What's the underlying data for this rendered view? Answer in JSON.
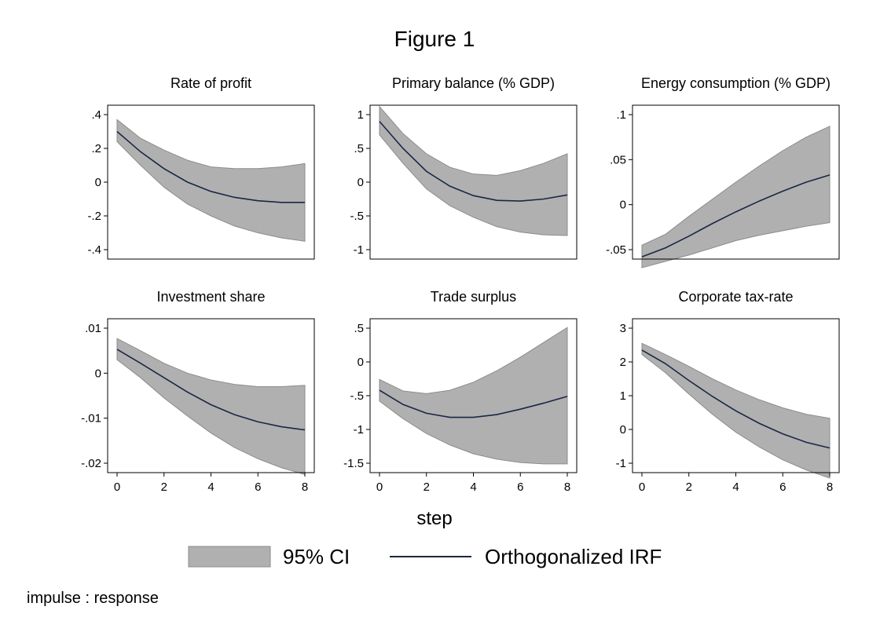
{
  "figure": {
    "title": "Figure 1",
    "xlabel": "step",
    "note": "impulse : response",
    "legend": [
      {
        "label": "95% CI",
        "kind": "band"
      },
      {
        "label": "Orthogonalized IRF",
        "kind": "line"
      }
    ],
    "colors": {
      "band": "#b0b0b0",
      "band_edge": "#8c8c8c",
      "line": "#1a2744",
      "frame": "#000000"
    }
  },
  "chart_data": [
    {
      "type": "area",
      "title": "Rate of profit",
      "x": [
        0,
        1,
        2,
        3,
        4,
        5,
        6,
        7,
        8
      ],
      "xlim": [
        0,
        8
      ],
      "xticks": [
        {
          "v": 0,
          "label": "0"
        },
        {
          "v": 2,
          "label": "2"
        },
        {
          "v": 4,
          "label": "4"
        },
        {
          "v": 6,
          "label": "6"
        },
        {
          "v": 8,
          "label": "8"
        }
      ],
      "ylim": [
        -0.4,
        0.4
      ],
      "yticks": [
        {
          "v": 0.4,
          "label": ".4"
        },
        {
          "v": 0.2,
          "label": ".2"
        },
        {
          "v": 0,
          "label": "0"
        },
        {
          "v": -0.2,
          "label": "-.2"
        },
        {
          "v": -0.4,
          "label": "-.4"
        }
      ],
      "series": [
        {
          "name": "Orthogonalized IRF",
          "values": [
            0.3,
            0.18,
            0.08,
            0.0,
            -0.055,
            -0.09,
            -0.11,
            -0.12,
            -0.12
          ]
        },
        {
          "name": "95% CI",
          "lower": [
            0.24,
            0.1,
            -0.03,
            -0.13,
            -0.2,
            -0.26,
            -0.3,
            -0.33,
            -0.35
          ],
          "upper": [
            0.37,
            0.26,
            0.19,
            0.13,
            0.09,
            0.08,
            0.08,
            0.09,
            0.11
          ]
        }
      ]
    },
    {
      "type": "area",
      "title": "Primary balance (% GDP)",
      "x": [
        0,
        1,
        2,
        3,
        4,
        5,
        6,
        7,
        8
      ],
      "xlim": [
        0,
        8
      ],
      "xticks": [
        {
          "v": 0,
          "label": "0"
        },
        {
          "v": 2,
          "label": "2"
        },
        {
          "v": 4,
          "label": "4"
        },
        {
          "v": 6,
          "label": "6"
        },
        {
          "v": 8,
          "label": "8"
        }
      ],
      "ylim": [
        -1,
        1
      ],
      "yticks": [
        {
          "v": 1,
          "label": "1"
        },
        {
          "v": 0.5,
          "label": ".5"
        },
        {
          "v": 0,
          "label": "0"
        },
        {
          "v": -0.5,
          "label": "-.5"
        },
        {
          "v": -1,
          "label": "-1"
        }
      ],
      "series": [
        {
          "name": "Orthogonalized IRF",
          "values": [
            0.9,
            0.5,
            0.16,
            -0.06,
            -0.2,
            -0.27,
            -0.28,
            -0.25,
            -0.19
          ]
        },
        {
          "name": "95% CI",
          "lower": [
            0.7,
            0.28,
            -0.1,
            -0.35,
            -0.52,
            -0.66,
            -0.74,
            -0.78,
            -0.79
          ],
          "upper": [
            1.12,
            0.72,
            0.42,
            0.22,
            0.12,
            0.1,
            0.17,
            0.28,
            0.42
          ]
        }
      ]
    },
    {
      "type": "area",
      "title": "Energy consumption (% GDP)",
      "x": [
        0,
        1,
        2,
        3,
        4,
        5,
        6,
        7,
        8
      ],
      "xlim": [
        0,
        8
      ],
      "xticks": [
        {
          "v": 0,
          "label": "0"
        },
        {
          "v": 2,
          "label": "2"
        },
        {
          "v": 4,
          "label": "4"
        },
        {
          "v": 6,
          "label": "6"
        },
        {
          "v": 8,
          "label": "8"
        }
      ],
      "ylim": [
        -0.05,
        0.1
      ],
      "yticks": [
        {
          "v": 0.1,
          "label": ".1"
        },
        {
          "v": 0.05,
          "label": ".05"
        },
        {
          "v": 0,
          "label": "0"
        },
        {
          "v": -0.05,
          "label": "-.05"
        }
      ],
      "series": [
        {
          "name": "Orthogonalized IRF",
          "values": [
            -0.058,
            -0.048,
            -0.035,
            -0.021,
            -0.008,
            0.004,
            0.015,
            0.025,
            0.033
          ]
        },
        {
          "name": "95% CI",
          "lower": [
            -0.07,
            -0.063,
            -0.056,
            -0.048,
            -0.04,
            -0.034,
            -0.029,
            -0.024,
            -0.02
          ],
          "upper": [
            -0.045,
            -0.033,
            -0.013,
            0.006,
            0.025,
            0.043,
            0.06,
            0.075,
            0.087
          ]
        }
      ]
    },
    {
      "type": "area",
      "title": "Investment share",
      "x": [
        0,
        1,
        2,
        3,
        4,
        5,
        6,
        7,
        8
      ],
      "xlim": [
        0,
        8
      ],
      "xticks": [
        {
          "v": 0,
          "label": "0"
        },
        {
          "v": 2,
          "label": "2"
        },
        {
          "v": 4,
          "label": "4"
        },
        {
          "v": 6,
          "label": "6"
        },
        {
          "v": 8,
          "label": "8"
        }
      ],
      "ylim": [
        -0.02,
        0.01
      ],
      "yticks": [
        {
          "v": 0.01,
          "label": ".01"
        },
        {
          "v": 0,
          "label": "0"
        },
        {
          "v": -0.01,
          "label": "-.01"
        },
        {
          "v": -0.02,
          "label": "-.02"
        }
      ],
      "series": [
        {
          "name": "Orthogonalized IRF",
          "values": [
            0.0053,
            0.0022,
            -0.001,
            -0.0042,
            -0.007,
            -0.0092,
            -0.0108,
            -0.0119,
            -0.0126
          ]
        },
        {
          "name": "95% CI",
          "lower": [
            0.003,
            -0.001,
            -0.0055,
            -0.0095,
            -0.0133,
            -0.0165,
            -0.019,
            -0.021,
            -0.0225
          ],
          "upper": [
            0.0077,
            0.005,
            0.0022,
            0.0,
            -0.0015,
            -0.0025,
            -0.003,
            -0.003,
            -0.0027
          ]
        }
      ]
    },
    {
      "type": "area",
      "title": "Trade surplus",
      "x": [
        0,
        1,
        2,
        3,
        4,
        5,
        6,
        7,
        8
      ],
      "xlim": [
        0,
        8
      ],
      "xticks": [
        {
          "v": 0,
          "label": "0"
        },
        {
          "v": 2,
          "label": "2"
        },
        {
          "v": 4,
          "label": "4"
        },
        {
          "v": 6,
          "label": "6"
        },
        {
          "v": 8,
          "label": "8"
        }
      ],
      "ylim": [
        -1.5,
        0.5
      ],
      "yticks": [
        {
          "v": 0.5,
          "label": ".5"
        },
        {
          "v": 0,
          "label": "0"
        },
        {
          "v": -0.5,
          "label": "-.5"
        },
        {
          "v": -1,
          "label": "-1"
        },
        {
          "v": -1.5,
          "label": "-1.5"
        }
      ],
      "series": [
        {
          "name": "Orthogonalized IRF",
          "values": [
            -0.42,
            -0.63,
            -0.76,
            -0.82,
            -0.82,
            -0.78,
            -0.7,
            -0.61,
            -0.51
          ]
        },
        {
          "name": "95% CI",
          "lower": [
            -0.58,
            -0.84,
            -1.06,
            -1.23,
            -1.36,
            -1.44,
            -1.49,
            -1.51,
            -1.51
          ],
          "upper": [
            -0.26,
            -0.43,
            -0.47,
            -0.42,
            -0.3,
            -0.13,
            0.07,
            0.29,
            0.51
          ]
        }
      ]
    },
    {
      "type": "area",
      "title": "Corporate tax-rate",
      "x": [
        0,
        1,
        2,
        3,
        4,
        5,
        6,
        7,
        8
      ],
      "xlim": [
        0,
        8
      ],
      "xticks": [
        {
          "v": 0,
          "label": "0"
        },
        {
          "v": 2,
          "label": "2"
        },
        {
          "v": 4,
          "label": "4"
        },
        {
          "v": 6,
          "label": "6"
        },
        {
          "v": 8,
          "label": "8"
        }
      ],
      "ylim": [
        -1,
        3
      ],
      "yticks": [
        {
          "v": 3,
          "label": "3"
        },
        {
          "v": 2,
          "label": "2"
        },
        {
          "v": 1,
          "label": "1"
        },
        {
          "v": 0,
          "label": "0"
        },
        {
          "v": -1,
          "label": "-1"
        }
      ],
      "series": [
        {
          "name": "Orthogonalized IRF",
          "values": [
            2.35,
            1.95,
            1.45,
            0.98,
            0.55,
            0.18,
            -0.13,
            -0.38,
            -0.55
          ]
        },
        {
          "name": "95% CI",
          "lower": [
            2.22,
            1.68,
            1.05,
            0.45,
            -0.08,
            -0.52,
            -0.9,
            -1.2,
            -1.44
          ],
          "upper": [
            2.55,
            2.22,
            1.87,
            1.5,
            1.17,
            0.88,
            0.64,
            0.45,
            0.33
          ]
        }
      ]
    }
  ]
}
